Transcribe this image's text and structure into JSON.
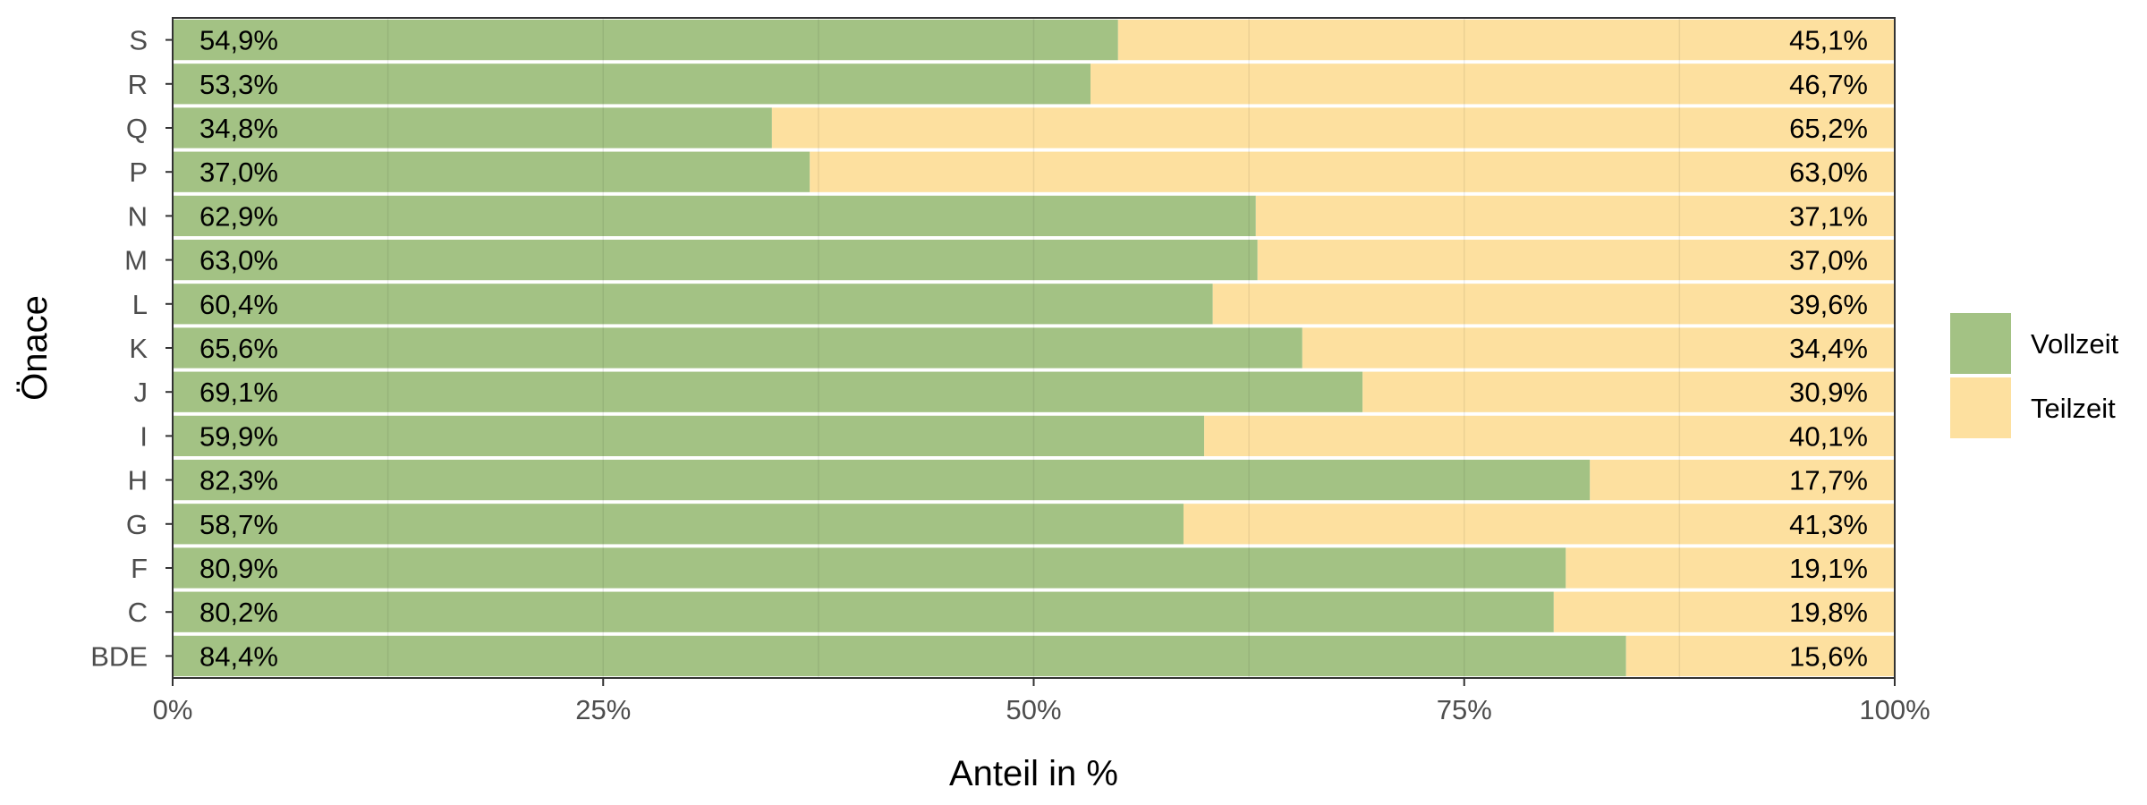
{
  "chart_data": {
    "type": "bar",
    "orientation": "horizontal",
    "stacked": true,
    "percent_stacked": true,
    "xlabel": "Anteil in %",
    "ylabel": "Önace",
    "xlim": [
      0,
      100
    ],
    "x_ticks": [
      0,
      25,
      50,
      75,
      100
    ],
    "x_tick_labels": [
      "0%",
      "25%",
      "50%",
      "75%",
      "100%"
    ],
    "categories": [
      "S",
      "R",
      "Q",
      "P",
      "N",
      "M",
      "L",
      "K",
      "J",
      "I",
      "H",
      "G",
      "F",
      "C",
      "BDE"
    ],
    "series": [
      {
        "name": "Vollzeit",
        "color": "#a3c284",
        "values": [
          54.9,
          53.3,
          34.8,
          37.0,
          62.9,
          63.0,
          60.4,
          65.6,
          69.1,
          59.9,
          82.3,
          58.7,
          80.9,
          80.2,
          84.4
        ],
        "labels": [
          "54,9%",
          "53,3%",
          "34,8%",
          "37,0%",
          "62,9%",
          "63,0%",
          "60,4%",
          "65,6%",
          "69,1%",
          "59,9%",
          "82,3%",
          "58,7%",
          "80,9%",
          "80,2%",
          "84,4%"
        ]
      },
      {
        "name": "Teilzeit",
        "color": "#fde09f",
        "values": [
          45.1,
          46.7,
          65.2,
          63.0,
          37.1,
          37.0,
          39.6,
          34.4,
          30.9,
          40.1,
          17.7,
          41.3,
          19.1,
          19.8,
          15.6
        ],
        "labels": [
          "45,1%",
          "46,7%",
          "65,2%",
          "63,0%",
          "37,1%",
          "37,0%",
          "39,6%",
          "34,4%",
          "30,9%",
          "40,1%",
          "17,7%",
          "41,3%",
          "19,1%",
          "19,8%",
          "15,6%"
        ]
      }
    ],
    "legend": {
      "position": "right",
      "entries": [
        "Vollzeit",
        "Teilzeit"
      ]
    },
    "grid": true
  }
}
